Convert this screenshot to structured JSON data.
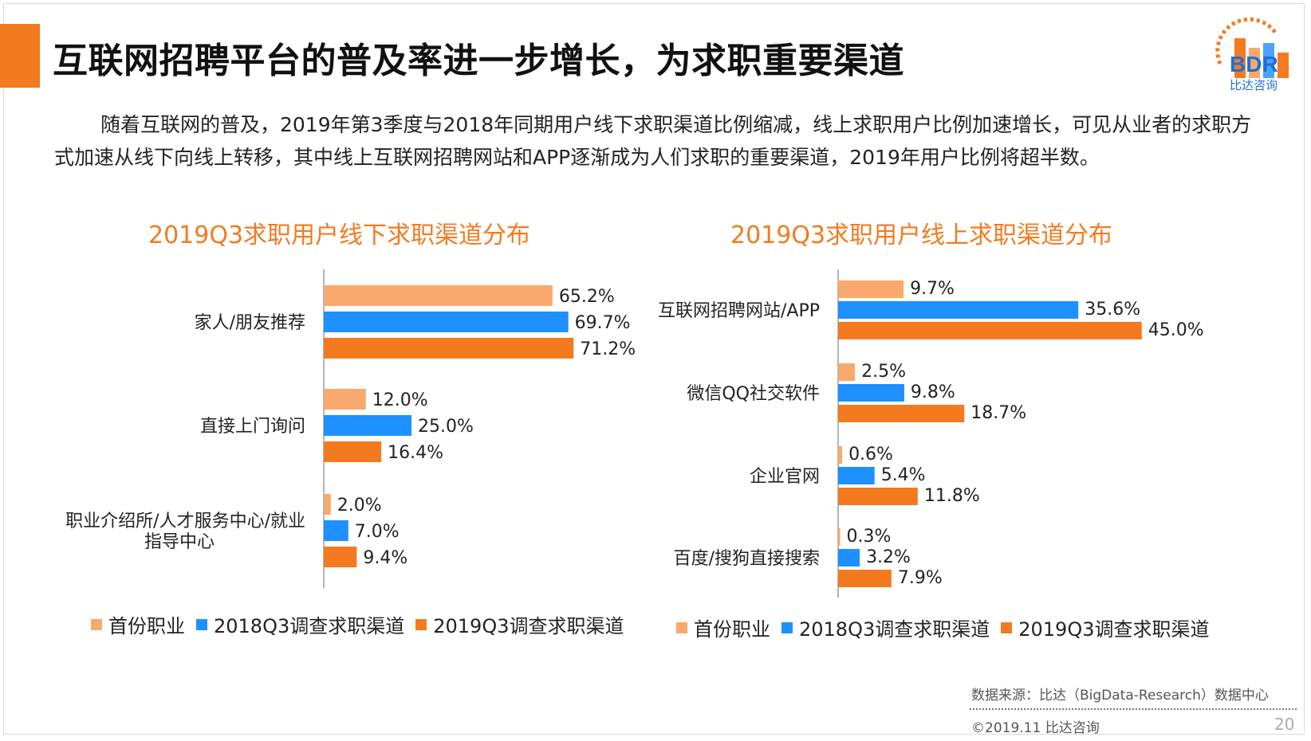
{
  "title": "互联网招聘平台的普及率进一步增长，为求职重要渠道",
  "logo": {
    "text": "BDR",
    "subtitle": "比达咨询"
  },
  "intro": "随着互联网的普及，2019年第3季度与2018年同期用户线下求职渠道比例缩减，线上求职用户比例加速增长，可见从业者的求职方式加速从线下向线上转移，其中线上互联网招聘网站和APP逐渐成为人们求职的重要渠道，2019年用户比例将超半数。",
  "colors": {
    "accent": "#f47a20",
    "first_job": "#f9a96b",
    "y2018": "#1e90ff",
    "y2019": "#f47a20"
  },
  "chart_data": [
    {
      "type": "bar",
      "orientation": "horizontal",
      "title": "2019Q3求职用户线下求职渠道分布",
      "categories": [
        "家人/朋友推荐",
        "直接上门询问",
        "职业介绍所/人才服务中心/就业指导中心"
      ],
      "category_lines": [
        [
          "家人/朋友推荐"
        ],
        [
          "直接上门询问"
        ],
        [
          "职业介绍所/人才服务中心/就业",
          "指导中心"
        ]
      ],
      "series": [
        {
          "name": "首份职业",
          "values": [
            65.2,
            12.0,
            2.0
          ],
          "labels": [
            "65.2%",
            "12.0%",
            "2.0%"
          ]
        },
        {
          "name": "2018Q3调查求职渠道",
          "values": [
            69.7,
            25.0,
            7.0
          ],
          "labels": [
            "69.7%",
            "25.0%",
            "7.0%"
          ]
        },
        {
          "name": "2019Q3调查求职渠道",
          "values": [
            71.2,
            16.4,
            9.4
          ],
          "labels": [
            "71.2%",
            "16.4%",
            "9.4%"
          ]
        }
      ],
      "unit": "%",
      "xlim": [
        0,
        75
      ],
      "legend": "bottom"
    },
    {
      "type": "bar",
      "orientation": "horizontal",
      "title": "2019Q3求职用户线上求职渠道分布",
      "categories": [
        "互联网招聘网站/APP",
        "微信QQ社交软件",
        "企业官网",
        "百度/搜狗直接搜索"
      ],
      "category_lines": [
        [
          "互联网招聘网站/APP"
        ],
        [
          "微信QQ社交软件"
        ],
        [
          "企业官网"
        ],
        [
          "百度/搜狗直接搜索"
        ]
      ],
      "series": [
        {
          "name": "首份职业",
          "values": [
            9.7,
            2.5,
            0.6,
            0.3
          ],
          "labels": [
            "9.7%",
            "2.5%",
            "0.6%",
            "0.3%"
          ]
        },
        {
          "name": "2018Q3调查求职渠道",
          "values": [
            35.6,
            9.8,
            5.4,
            3.2
          ],
          "labels": [
            "35.6%",
            "9.8%",
            "5.4%",
            "3.2%"
          ]
        },
        {
          "name": "2019Q3调查求职渠道",
          "values": [
            45.0,
            18.7,
            11.8,
            7.9
          ],
          "labels": [
            "45.0%",
            "18.7%",
            "11.8%",
            "7.9%"
          ]
        }
      ],
      "unit": "%",
      "xlim": [
        0,
        45.5
      ],
      "legend": "bottom"
    }
  ],
  "legend_labels": [
    "首份职业",
    "2018Q3调查求职渠道",
    "2019Q3调查求职渠道"
  ],
  "footer": {
    "source": "数据来源：比达（BigData-Research）数据中心",
    "copyright": "©2019.11 比达咨询",
    "page": "20"
  }
}
